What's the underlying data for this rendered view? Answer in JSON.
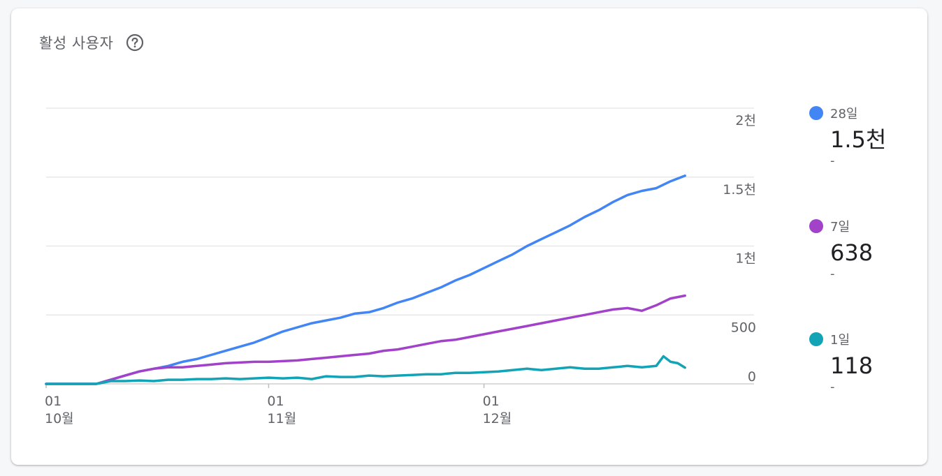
{
  "card": {
    "title": "활성 사용자"
  },
  "icons": {
    "help": "help-circle-icon"
  },
  "colors": {
    "series_28d": "#4285f4",
    "series_7d": "#a142c9",
    "series_1d": "#12a4b6",
    "grid": "#e3e3e3",
    "text": "#5f6368"
  },
  "legend": [
    {
      "key": "d28",
      "label": "28일",
      "value": "1.5천",
      "change": "-",
      "color": "#4285f4"
    },
    {
      "key": "d7",
      "label": "7일",
      "value": "638",
      "change": "-",
      "color": "#a142c9"
    },
    {
      "key": "d1",
      "label": "1일",
      "value": "118",
      "change": "-",
      "color": "#12a4b6"
    }
  ],
  "chart_data": {
    "type": "line",
    "x_start": "10-01",
    "x_end": "12-31",
    "y_ticks": [
      {
        "value": 0,
        "label": "0"
      },
      {
        "value": 500,
        "label": "500"
      },
      {
        "value": 1000,
        "label": "1천"
      },
      {
        "value": 1500,
        "label": "1.5천"
      },
      {
        "value": 2000,
        "label": "2천"
      }
    ],
    "ylim": [
      0,
      2000
    ],
    "x_ticks": [
      {
        "day": 0,
        "day_label": "01",
        "month_label": "10월"
      },
      {
        "day": 31,
        "day_label": "01",
        "month_label": "11월"
      },
      {
        "day": 61,
        "day_label": "01",
        "month_label": "12월"
      }
    ],
    "grid": true,
    "legend_position": "right",
    "series": [
      {
        "name": "28일",
        "color": "#4285f4",
        "points": [
          [
            0,
            0
          ],
          [
            7,
            0
          ],
          [
            9,
            30
          ],
          [
            11,
            60
          ],
          [
            13,
            90
          ],
          [
            15,
            110
          ],
          [
            17,
            130
          ],
          [
            19,
            160
          ],
          [
            21,
            180
          ],
          [
            23,
            210
          ],
          [
            25,
            240
          ],
          [
            27,
            270
          ],
          [
            29,
            300
          ],
          [
            31,
            340
          ],
          [
            33,
            380
          ],
          [
            35,
            410
          ],
          [
            37,
            440
          ],
          [
            39,
            460
          ],
          [
            41,
            480
          ],
          [
            43,
            510
          ],
          [
            45,
            520
          ],
          [
            47,
            550
          ],
          [
            49,
            590
          ],
          [
            51,
            620
          ],
          [
            53,
            660
          ],
          [
            55,
            700
          ],
          [
            57,
            750
          ],
          [
            59,
            790
          ],
          [
            61,
            840
          ],
          [
            63,
            890
          ],
          [
            65,
            940
          ],
          [
            67,
            1000
          ],
          [
            69,
            1050
          ],
          [
            71,
            1100
          ],
          [
            73,
            1150
          ],
          [
            75,
            1210
          ],
          [
            77,
            1260
          ],
          [
            79,
            1320
          ],
          [
            81,
            1370
          ],
          [
            83,
            1400
          ],
          [
            85,
            1420
          ],
          [
            87,
            1470
          ],
          [
            89,
            1510
          ]
        ]
      },
      {
        "name": "7일",
        "color": "#a142c9",
        "points": [
          [
            0,
            0
          ],
          [
            7,
            0
          ],
          [
            9,
            30
          ],
          [
            11,
            60
          ],
          [
            13,
            90
          ],
          [
            15,
            110
          ],
          [
            17,
            120
          ],
          [
            19,
            120
          ],
          [
            21,
            130
          ],
          [
            23,
            140
          ],
          [
            25,
            150
          ],
          [
            27,
            155
          ],
          [
            29,
            160
          ],
          [
            31,
            160
          ],
          [
            33,
            165
          ],
          [
            35,
            170
          ],
          [
            37,
            180
          ],
          [
            39,
            190
          ],
          [
            41,
            200
          ],
          [
            43,
            210
          ],
          [
            45,
            220
          ],
          [
            47,
            240
          ],
          [
            49,
            250
          ],
          [
            51,
            270
          ],
          [
            53,
            290
          ],
          [
            55,
            310
          ],
          [
            57,
            320
          ],
          [
            59,
            340
          ],
          [
            61,
            360
          ],
          [
            63,
            380
          ],
          [
            65,
            400
          ],
          [
            67,
            420
          ],
          [
            69,
            440
          ],
          [
            71,
            460
          ],
          [
            73,
            480
          ],
          [
            75,
            500
          ],
          [
            77,
            520
          ],
          [
            79,
            540
          ],
          [
            81,
            550
          ],
          [
            83,
            530
          ],
          [
            85,
            570
          ],
          [
            87,
            620
          ],
          [
            89,
            640
          ]
        ]
      },
      {
        "name": "1일",
        "color": "#12a4b6",
        "points": [
          [
            0,
            0
          ],
          [
            7,
            0
          ],
          [
            9,
            20
          ],
          [
            11,
            20
          ],
          [
            13,
            25
          ],
          [
            15,
            20
          ],
          [
            17,
            30
          ],
          [
            19,
            30
          ],
          [
            21,
            35
          ],
          [
            23,
            35
          ],
          [
            25,
            40
          ],
          [
            27,
            35
          ],
          [
            29,
            40
          ],
          [
            31,
            45
          ],
          [
            33,
            40
          ],
          [
            35,
            45
          ],
          [
            37,
            35
          ],
          [
            39,
            55
          ],
          [
            41,
            50
          ],
          [
            43,
            50
          ],
          [
            45,
            60
          ],
          [
            47,
            55
          ],
          [
            49,
            60
          ],
          [
            51,
            65
          ],
          [
            53,
            70
          ],
          [
            55,
            70
          ],
          [
            57,
            80
          ],
          [
            59,
            80
          ],
          [
            61,
            85
          ],
          [
            63,
            90
          ],
          [
            65,
            100
          ],
          [
            67,
            110
          ],
          [
            69,
            100
          ],
          [
            71,
            110
          ],
          [
            73,
            120
          ],
          [
            75,
            110
          ],
          [
            77,
            110
          ],
          [
            79,
            120
          ],
          [
            81,
            130
          ],
          [
            83,
            120
          ],
          [
            85,
            130
          ],
          [
            86,
            200
          ],
          [
            87,
            160
          ],
          [
            88,
            150
          ],
          [
            89,
            118
          ]
        ]
      }
    ]
  }
}
